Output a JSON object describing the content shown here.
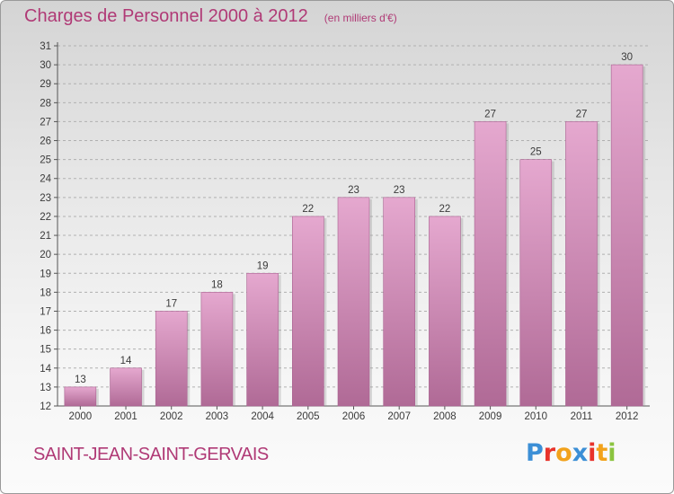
{
  "header": {
    "title": "Charges de Personnel 2000 à 2012",
    "unit": "(en milliers d'€)"
  },
  "footer": {
    "commune": "SAINT-JEAN-SAINT-GERVAIS",
    "logo_letters": [
      {
        "ch": "P",
        "color": "#3c8fd6"
      },
      {
        "ch": "r",
        "color": "#e8332b"
      },
      {
        "ch": "o",
        "color": "#f2a21b"
      },
      {
        "ch": "x",
        "color": "#3c8fd6"
      },
      {
        "ch": "i",
        "color": "#e8332b"
      },
      {
        "ch": "t",
        "color": "#f2a21b"
      },
      {
        "ch": "i",
        "color": "#8bc43f"
      }
    ]
  },
  "colors": {
    "bar_light": "#e5a8cf",
    "bar_dark": "#b06a96",
    "title": "#b03a76",
    "grid": "#b0b0b0"
  },
  "chart_data": {
    "type": "bar",
    "title": "Charges de Personnel 2000 à 2012",
    "categories": [
      "2000",
      "2001",
      "2002",
      "2003",
      "2004",
      "2005",
      "2006",
      "2007",
      "2008",
      "2009",
      "2010",
      "2011",
      "2012"
    ],
    "values": [
      13,
      14,
      17,
      18,
      19,
      22,
      23,
      23,
      22,
      27,
      25,
      27,
      30
    ],
    "ylim": [
      12,
      31
    ],
    "yticks": [
      12,
      13,
      14,
      15,
      16,
      17,
      18,
      19,
      20,
      21,
      22,
      23,
      24,
      25,
      26,
      27,
      28,
      29,
      30,
      31
    ],
    "grid": true,
    "grid_style": "dashed"
  }
}
